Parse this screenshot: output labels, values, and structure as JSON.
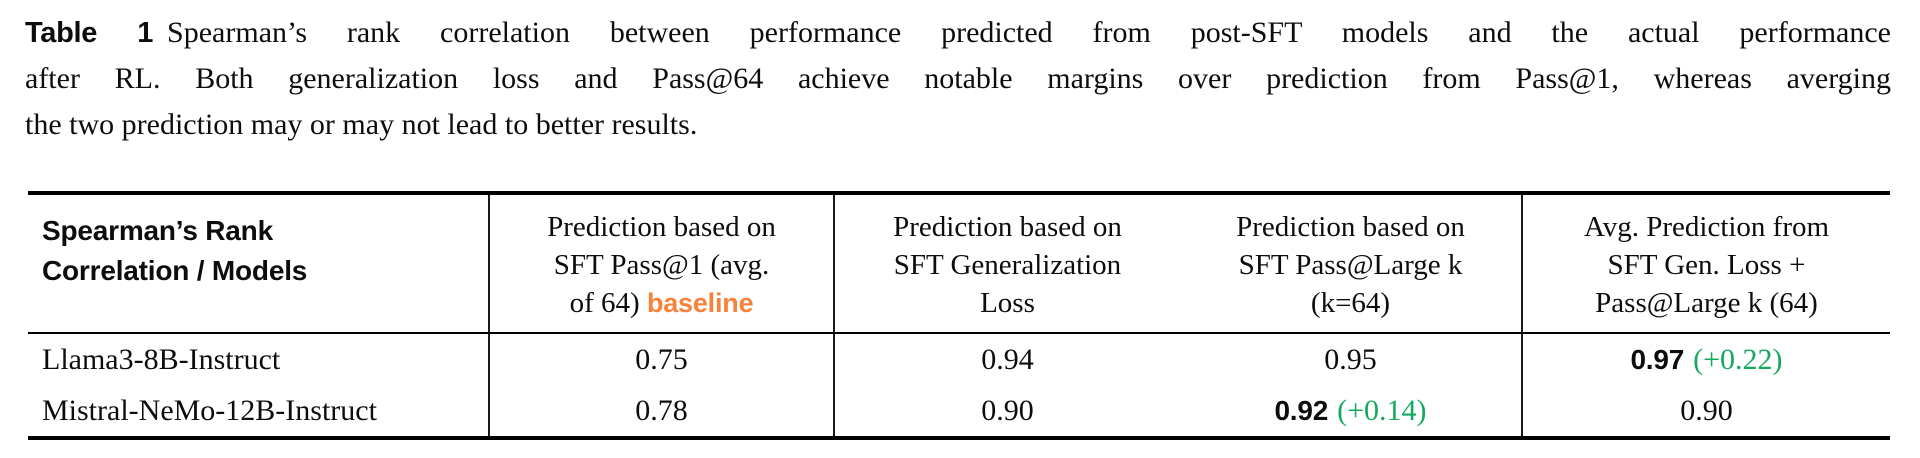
{
  "caption": {
    "label": "Table 1",
    "lines": [
      "Spearman’s rank correlation between performance predicted from post-SFT models and the actual performance",
      "after RL. Both generalization loss and Pass@64 achieve notable margins over prediction from Pass@1, whereas averging",
      "the two prediction may or may not lead to better results."
    ]
  },
  "colors": {
    "baseline_orange": "#f6823c",
    "delta_green": "#16a85f",
    "rule_black": "#000000"
  },
  "table": {
    "corner_header": {
      "line1": "Spearman’s Rank",
      "line2": "Correlation / Models"
    },
    "columns": [
      {
        "line1": "Prediction based on",
        "line2": "SFT Pass@1 (avg.",
        "line3": "of 64)",
        "badge": "baseline"
      },
      {
        "line1": "Prediction based on",
        "line2": "SFT Generalization",
        "line3": "Loss"
      },
      {
        "line1": "Prediction based on",
        "line2": "SFT Pass@Large k",
        "line3": "(k=64)"
      },
      {
        "line1": "Avg. Prediction from",
        "line2": "SFT Gen. Loss +",
        "line3": "Pass@Large k (64)"
      }
    ],
    "rows": [
      {
        "model": "Llama3-8B-Instruct",
        "cells": [
          {
            "value": "0.75"
          },
          {
            "value": "0.94"
          },
          {
            "value": "0.95"
          },
          {
            "value": "0.97",
            "delta": "(+0.22)"
          }
        ]
      },
      {
        "model": "Mistral-NeMo-12B-Instruct",
        "cells": [
          {
            "value": "0.78"
          },
          {
            "value": "0.90"
          },
          {
            "value": "0.92",
            "delta": "(+0.14)"
          },
          {
            "value": "0.90"
          }
        ]
      }
    ]
  }
}
